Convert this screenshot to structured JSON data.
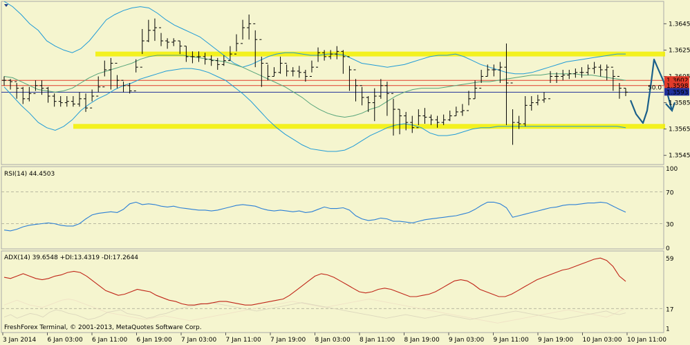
{
  "chart_data": [
    {
      "type": "line",
      "title": "",
      "ylim": [
        1.3538,
        1.3662
      ],
      "y_ticks": [
        "1.3645",
        "1.3625",
        "1.3605",
        "1.3585",
        "1.3565",
        "1.3545"
      ],
      "price_labels": [
        {
          "text": "1.3602",
          "value": 1.3602,
          "color": "#e23b2a"
        },
        {
          "text": "1.3598",
          "value": 1.3598,
          "color": "#e23b2a"
        },
        {
          "text": "1.3593",
          "value": 1.3593,
          "color": "#20309a"
        }
      ],
      "fib_label": "50.0",
      "horizontal_lines": [
        {
          "name": "resistance-zone",
          "value": 1.3622,
          "color": "#f2f000"
        },
        {
          "name": "support-zone",
          "value": 1.3567,
          "color": "#f2f000"
        },
        {
          "name": "red-level-upper",
          "value": 1.3602,
          "color": "#e23b2a"
        },
        {
          "name": "red-level-lower",
          "value": 1.3598,
          "color": "#e23b2a"
        },
        {
          "name": "blue-level",
          "value": 1.3593,
          "color": "#20309a"
        }
      ],
      "close": [
        1.3602,
        1.3601,
        1.3596,
        1.3588,
        1.3592,
        1.3598,
        1.3596,
        1.359,
        1.3586,
        1.3585,
        1.3586,
        1.3584,
        1.3588,
        1.3581,
        1.359,
        1.3597,
        1.361,
        1.3615,
        1.3602,
        1.3598,
        1.3594,
        1.3612,
        1.3632,
        1.364,
        1.3642,
        1.3632,
        1.3631,
        1.3632,
        1.3628,
        1.362,
        1.362,
        1.362,
        1.3618,
        1.3617,
        1.3614,
        1.3617,
        1.3622,
        1.363,
        1.3642,
        1.3645,
        1.3633,
        1.3615,
        1.3605,
        1.3608,
        1.3615,
        1.3609,
        1.3609,
        1.3608,
        1.3605,
        1.3612,
        1.3623,
        1.362,
        1.3622,
        1.3624,
        1.362,
        1.361,
        1.3598,
        1.3589,
        1.3585,
        1.359,
        1.3598,
        1.3592,
        1.358,
        1.3575,
        1.357,
        1.3566,
        1.3575,
        1.3574,
        1.3572,
        1.357,
        1.3572,
        1.3575,
        1.3578,
        1.3579,
        1.3588,
        1.3596,
        1.3605,
        1.361,
        1.361,
        1.3612,
        1.36,
        1.357,
        1.3569,
        1.3583,
        1.3585,
        1.3587,
        1.3588,
        1.3605,
        1.3605,
        1.3606,
        1.3607,
        1.3608,
        1.3608,
        1.3611,
        1.3612,
        1.361,
        1.3612,
        1.3605,
        1.3596,
        1.3593
      ],
      "high": [
        1.3605,
        1.3603,
        1.36,
        1.3597,
        1.3597,
        1.3602,
        1.3602,
        1.3597,
        1.3592,
        1.359,
        1.359,
        1.359,
        1.3593,
        1.3592,
        1.3595,
        1.3605,
        1.3617,
        1.3619,
        1.3606,
        1.3601,
        1.36,
        1.3618,
        1.3641,
        1.3648,
        1.3649,
        1.3638,
        1.3634,
        1.3634,
        1.3632,
        1.3628,
        1.3624,
        1.3624,
        1.3623,
        1.3621,
        1.3619,
        1.3621,
        1.3628,
        1.3637,
        1.3648,
        1.3652,
        1.364,
        1.362,
        1.3614,
        1.3612,
        1.362,
        1.3614,
        1.3612,
        1.3613,
        1.361,
        1.3617,
        1.3627,
        1.3625,
        1.3625,
        1.3628,
        1.3625,
        1.3613,
        1.3603,
        1.3597,
        1.359,
        1.3596,
        1.3603,
        1.3601,
        1.3588,
        1.358,
        1.3578,
        1.3575,
        1.358,
        1.3581,
        1.3576,
        1.3575,
        1.3576,
        1.3579,
        1.3582,
        1.3584,
        1.3594,
        1.3602,
        1.361,
        1.3614,
        1.3614,
        1.3616,
        1.363,
        1.358,
        1.3575,
        1.359,
        1.359,
        1.3591,
        1.3593,
        1.3609,
        1.3608,
        1.361,
        1.361,
        1.3611,
        1.3612,
        1.3614,
        1.3616,
        1.3614,
        1.3614,
        1.361,
        1.36,
        1.3596
      ],
      "low": [
        1.3598,
        1.3595,
        1.3588,
        1.3584,
        1.3586,
        1.3594,
        1.3591,
        1.3585,
        1.3582,
        1.3582,
        1.3582,
        1.3582,
        1.3582,
        1.3578,
        1.3586,
        1.3593,
        1.3605,
        1.3595,
        1.3596,
        1.3593,
        1.3592,
        1.3608,
        1.3622,
        1.3631,
        1.3632,
        1.3628,
        1.3626,
        1.3628,
        1.3622,
        1.3616,
        1.3615,
        1.3616,
        1.3614,
        1.3613,
        1.361,
        1.3613,
        1.3617,
        1.3624,
        1.3633,
        1.3633,
        1.3612,
        1.3597,
        1.3602,
        1.3605,
        1.3607,
        1.3605,
        1.3605,
        1.3604,
        1.3601,
        1.3608,
        1.3616,
        1.3617,
        1.3618,
        1.3618,
        1.3607,
        1.3594,
        1.3586,
        1.3583,
        1.3578,
        1.3571,
        1.3588,
        1.3575,
        1.356,
        1.3561,
        1.3564,
        1.3562,
        1.3568,
        1.3569,
        1.3568,
        1.3566,
        1.3568,
        1.3571,
        1.3575,
        1.3575,
        1.3583,
        1.3588,
        1.36,
        1.3605,
        1.3605,
        1.36,
        1.3568,
        1.3553,
        1.3565,
        1.3567,
        1.3579,
        1.3583,
        1.3585,
        1.36,
        1.36,
        1.3602,
        1.3603,
        1.3604,
        1.3604,
        1.3606,
        1.3607,
        1.3605,
        1.3602,
        1.3594,
        1.3588,
        1.359
      ],
      "bb_upper": [
        1.3662,
        1.3658,
        1.3652,
        1.3645,
        1.364,
        1.3632,
        1.3628,
        1.3625,
        1.3623,
        1.3626,
        1.3632,
        1.364,
        1.3648,
        1.3652,
        1.3655,
        1.3657,
        1.3658,
        1.3657,
        1.3653,
        1.3648,
        1.3644,
        1.3641,
        1.3638,
        1.3635,
        1.363,
        1.3625,
        1.362,
        1.3615,
        1.3612,
        1.3614,
        1.3617,
        1.362,
        1.3622,
        1.3623,
        1.3623,
        1.3622,
        1.3621,
        1.3621,
        1.3622,
        1.3622,
        1.3621,
        1.3618,
        1.3615,
        1.3614,
        1.3613,
        1.3612,
        1.3613,
        1.3614,
        1.3616,
        1.3618,
        1.362,
        1.3621,
        1.3621,
        1.3622,
        1.362,
        1.3617,
        1.3614,
        1.3612,
        1.361,
        1.3608,
        1.3607,
        1.3607,
        1.3608,
        1.361,
        1.3612,
        1.3614,
        1.3616,
        1.3617,
        1.3618,
        1.3619,
        1.362,
        1.3621,
        1.3622,
        1.3622
      ],
      "bb_mid": [
        1.3605,
        1.3604,
        1.3601,
        1.3598,
        1.3595,
        1.3594,
        1.3593,
        1.3594,
        1.3596,
        1.36,
        1.3604,
        1.3607,
        1.3609,
        1.3611,
        1.3613,
        1.3615,
        1.3618,
        1.362,
        1.3621,
        1.3621,
        1.3621,
        1.3621,
        1.362,
        1.3619,
        1.3618,
        1.3617,
        1.3616,
        1.3614,
        1.3612,
        1.3609,
        1.3606,
        1.3603,
        1.36,
        1.3597,
        1.3593,
        1.3589,
        1.3584,
        1.358,
        1.3577,
        1.3575,
        1.3574,
        1.3575,
        1.3577,
        1.358,
        1.3582,
        1.3586,
        1.359,
        1.3593,
        1.3595,
        1.3596,
        1.3596,
        1.3596,
        1.3597,
        1.3598,
        1.3599,
        1.36,
        1.3601,
        1.3601,
        1.3602,
        1.3603,
        1.3604,
        1.3605,
        1.3606,
        1.3606,
        1.3607,
        1.3607,
        1.3607,
        1.3607,
        1.3606,
        1.3606,
        1.3605,
        1.3604,
        1.3603,
        1.3602
      ],
      "bb_lower": [
        1.3597,
        1.359,
        1.3583,
        1.3577,
        1.357,
        1.3566,
        1.3564,
        1.3567,
        1.3572,
        1.3579,
        1.3584,
        1.3588,
        1.3591,
        1.3595,
        1.3598,
        1.36,
        1.3603,
        1.3605,
        1.3607,
        1.3609,
        1.361,
        1.3611,
        1.3611,
        1.361,
        1.3608,
        1.3605,
        1.3602,
        1.3597,
        1.3592,
        1.3586,
        1.3579,
        1.3572,
        1.3566,
        1.3561,
        1.3557,
        1.3553,
        1.355,
        1.3549,
        1.3548,
        1.3548,
        1.3549,
        1.3552,
        1.3556,
        1.356,
        1.3563,
        1.3566,
        1.3568,
        1.3569,
        1.3568,
        1.3566,
        1.3562,
        1.356,
        1.356,
        1.3561,
        1.3563,
        1.3565,
        1.3566,
        1.3566,
        1.3567,
        1.3567,
        1.3567,
        1.3567,
        1.3567,
        1.3567,
        1.3567,
        1.3567,
        1.3567,
        1.3567,
        1.3567,
        1.3567,
        1.3567,
        1.3567,
        1.3567,
        1.3566
      ]
    },
    {
      "type": "line",
      "title": "RSI(14) 44.4503",
      "ylim": [
        0,
        100
      ],
      "y_ticks": [
        "100",
        "70",
        "30",
        "0"
      ],
      "levels": [
        70,
        30
      ],
      "series": [
        {
          "name": "RSI(14)",
          "color": "#2b7fd6",
          "values": [
            22,
            21,
            23,
            26,
            28,
            29,
            30,
            31,
            30,
            28,
            27,
            27,
            30,
            36,
            41,
            43,
            44,
            45,
            44,
            48,
            55,
            57,
            54,
            55,
            54,
            52,
            51,
            52,
            50,
            49,
            48,
            47,
            47,
            46,
            47,
            49,
            51,
            53,
            54,
            53,
            52,
            49,
            47,
            46,
            47,
            46,
            45,
            46,
            44,
            45,
            48,
            51,
            49,
            49,
            50,
            47,
            40,
            36,
            34,
            35,
            37,
            36,
            33,
            33,
            32,
            31,
            33,
            35,
            36,
            37,
            38,
            39,
            40,
            42,
            44,
            48,
            53,
            57,
            57,
            55,
            50,
            38,
            40,
            42,
            44,
            46,
            48,
            50,
            51,
            53,
            54,
            54,
            55,
            56,
            56,
            57,
            56,
            52,
            48,
            44.45
          ]
        }
      ]
    },
    {
      "type": "line",
      "title": "ADX(14) 39.6548 +DI:13.4319 -DI:17.2644",
      "ylim": [
        0,
        62
      ],
      "y_ticks": [
        "59",
        "17",
        "1"
      ],
      "levels": [
        17
      ],
      "series": [
        {
          "name": "ADX(14)",
          "color": "#c02518",
          "values": [
            43,
            42,
            44,
            46,
            44,
            42,
            41,
            42,
            44,
            45,
            47,
            48,
            47,
            44,
            40,
            36,
            32,
            30,
            28,
            29,
            31,
            33,
            32,
            31,
            28,
            26,
            24,
            23,
            21,
            20,
            20,
            21,
            21,
            22,
            23,
            23,
            22,
            21,
            20,
            20,
            21,
            22,
            23,
            24,
            25,
            28,
            32,
            36,
            40,
            44,
            46,
            45,
            43,
            40,
            37,
            34,
            31,
            30,
            31,
            33,
            34,
            33,
            31,
            29,
            27,
            27,
            28,
            29,
            31,
            34,
            37,
            40,
            41,
            40,
            37,
            33,
            31,
            29,
            27,
            27,
            29,
            32,
            35,
            38,
            41,
            43,
            45,
            47,
            49,
            50,
            52,
            54,
            56,
            58,
            59,
            57,
            52,
            44,
            39.65
          ]
        },
        {
          "name": "+DI",
          "color": "#dcd7bd",
          "values": [
            10,
            12,
            9,
            11,
            13,
            12,
            10,
            14,
            16,
            15,
            13,
            12,
            10,
            8,
            9,
            11,
            14,
            15,
            16,
            13,
            12,
            11,
            9,
            10,
            12,
            13,
            15,
            17,
            18,
            19,
            20,
            21,
            22,
            21,
            20,
            19,
            18,
            17,
            16,
            15,
            16,
            17,
            18,
            19,
            20,
            21,
            22,
            21,
            20,
            19,
            18,
            17,
            16,
            15,
            14,
            13,
            12,
            11,
            10,
            9,
            10,
            11,
            12,
            11,
            10,
            9,
            10,
            11,
            12,
            11,
            10,
            9,
            8,
            9,
            10,
            11,
            12,
            13,
            14,
            15,
            14,
            13,
            12,
            11,
            10,
            9,
            8,
            9,
            10,
            11,
            12,
            13,
            14,
            15,
            13,
            12,
            13.43
          ]
        },
        {
          "name": "-DI",
          "color": "#f0e2c6",
          "values": [
            20,
            22,
            24,
            22,
            20,
            19,
            18,
            20,
            22,
            24,
            25,
            24,
            22,
            20,
            18,
            16,
            14,
            13,
            12,
            11,
            10,
            9,
            8,
            9,
            10,
            11,
            10,
            9,
            8,
            7,
            8,
            9,
            10,
            11,
            12,
            13,
            14,
            15,
            16,
            17,
            18,
            19,
            20,
            21,
            22,
            23,
            22,
            21,
            20,
            19,
            18,
            19,
            20,
            21,
            22,
            23,
            24,
            25,
            24,
            23,
            22,
            21,
            20,
            19,
            18,
            17,
            16,
            15,
            14,
            13,
            12,
            11,
            10,
            9,
            8,
            7,
            6,
            5,
            6,
            7,
            8,
            9,
            10,
            11,
            12,
            13,
            14,
            15,
            16,
            15,
            14,
            13,
            12,
            11,
            10,
            12,
            15,
            17.26
          ]
        }
      ]
    }
  ],
  "x_labels": [
    "3 Jan 2014",
    "6 Jan 03:00",
    "6 Jan 11:00",
    "6 Jan 19:00",
    "7 Jan 03:00",
    "7 Jan 11:00",
    "7 Jan 19:00",
    "8 Jan 03:00",
    "8 Jan 11:00",
    "8 Jan 19:00",
    "9 Jan 03:00",
    "9 Jan 11:00",
    "9 Jan 19:00",
    "10 Jan 03:00",
    "10 Jan 11:00"
  ],
  "footer": "FreshForex Terminal, © 2001-2013, MetaQuotes Software Corp.",
  "colors": {
    "background": "#f5f5cf",
    "bars": "#000000",
    "bollinger": "#1f9bd7",
    "bollinger_mid": "#55a47a",
    "arrow": "#1a5f8a"
  }
}
